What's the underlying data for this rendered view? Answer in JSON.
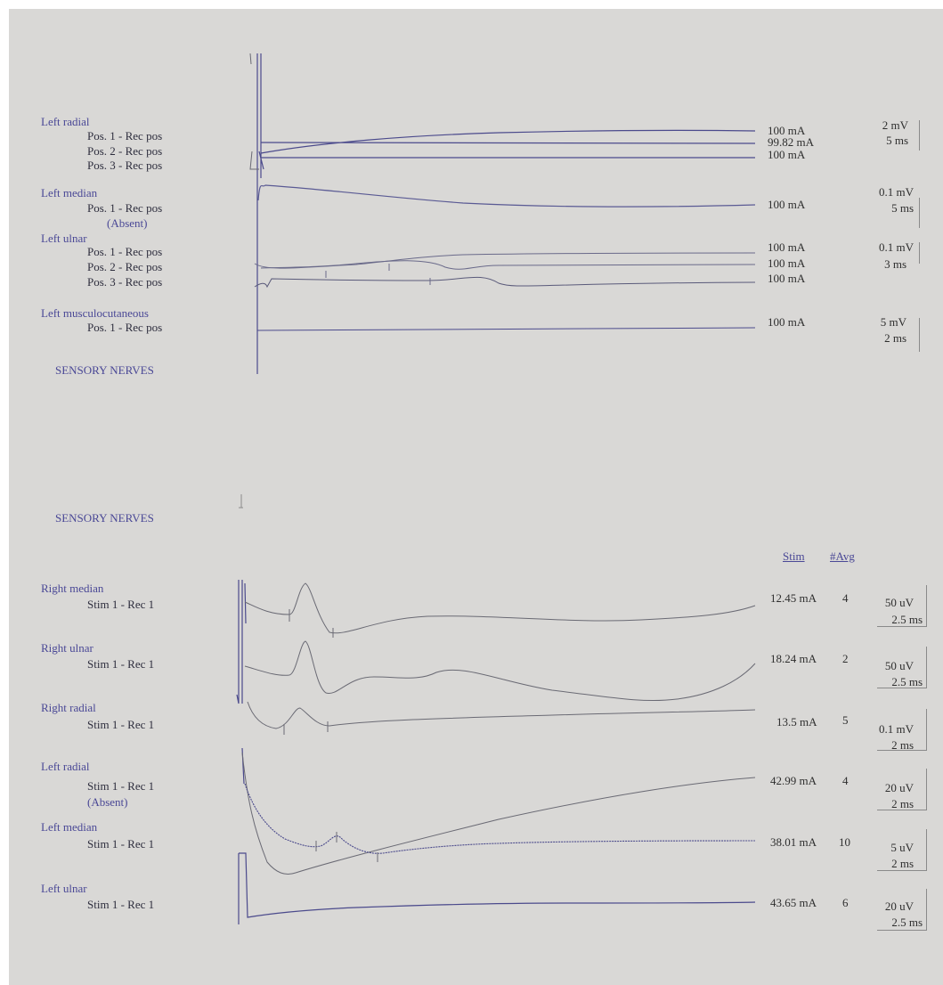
{
  "motor": {
    "groups": [
      {
        "nerve": "Left radial",
        "positions": [
          "Pos. 1 - Rec pos",
          "Pos. 2 - Rec pos",
          "Pos. 3 - Rec pos"
        ],
        "stims": [
          "100 mA",
          "99.82 mA",
          "100 mA"
        ],
        "scale_amp": "2 mV",
        "scale_time": "5 ms"
      },
      {
        "nerve": "Left median",
        "positions": [
          "Pos. 1 - Rec pos"
        ],
        "absent": "(Absent)",
        "stims": [
          "100 mA"
        ],
        "scale_amp": "0.1 mV",
        "scale_time": "5 ms"
      },
      {
        "nerve": "Left ulnar",
        "positions": [
          "Pos. 1 - Rec pos",
          "Pos. 2 - Rec pos",
          "Pos. 3 - Rec pos"
        ],
        "stims": [
          "100 mA",
          "100 mA",
          "100 mA"
        ],
        "scale_amp": "0.1 mV",
        "scale_time": "3 ms"
      },
      {
        "nerve": "Left musculocutaneous",
        "positions": [
          "Pos. 1 - Rec pos"
        ],
        "stims": [
          "100 mA"
        ],
        "scale_amp": "5 mV",
        "scale_time": "2 ms"
      }
    ],
    "footer": "SENSORY NERVES"
  },
  "sensory": {
    "heading": "SENSORY NERVES",
    "col_stim": "Stim",
    "col_avg": "#Avg",
    "rows": [
      {
        "nerve": "Right median",
        "label": "Stim 1 - Rec 1",
        "stim": "12.45 mA",
        "avg": "4",
        "scale_amp": "50 uV",
        "scale_time": "2.5 ms"
      },
      {
        "nerve": "Right ulnar",
        "label": "Stim 1 - Rec 1",
        "stim": "18.24 mA",
        "avg": "2",
        "scale_amp": "50 uV",
        "scale_time": "2.5 ms"
      },
      {
        "nerve": "Right radial",
        "label": "Stim 1 - Rec 1",
        "stim": "13.5 mA",
        "avg": "5",
        "scale_amp": "0.1 mV",
        "scale_time": "2 ms"
      },
      {
        "nerve": "Left radial",
        "label": "Stim 1 - Rec 1",
        "absent": "(Absent)",
        "stim": "42.99 mA",
        "avg": "4",
        "scale_amp": "20 uV",
        "scale_time": "2 ms"
      },
      {
        "nerve": "Left median",
        "label": "Stim 1 - Rec 1",
        "stim": "38.01 mA",
        "avg": "10",
        "scale_amp": "5 uV",
        "scale_time": "2 ms"
      },
      {
        "nerve": "Left ulnar",
        "label": "Stim 1 - Rec 1",
        "stim": "43.65 mA",
        "avg": "6",
        "scale_amp": "20 uV",
        "scale_time": "2.5 ms"
      }
    ]
  },
  "colors": {
    "label_blue": "#4a4896",
    "trace_blue": "#4b4a8c",
    "trace_gray": "#6a6a74",
    "paper": "#d9d8d6"
  }
}
